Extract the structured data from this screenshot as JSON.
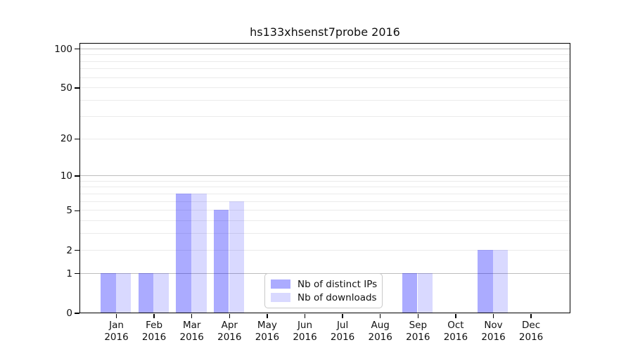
{
  "chart_data": {
    "type": "bar",
    "title": "hs133xhsenst7probe 2016",
    "year": "2016",
    "categories": [
      "Jan",
      "Feb",
      "Mar",
      "Apr",
      "May",
      "Jun",
      "Jul",
      "Aug",
      "Sep",
      "Oct",
      "Nov",
      "Dec"
    ],
    "series": [
      {
        "name": "Nb of distinct IPs",
        "base_color": "#0000ff",
        "alpha": 0.33,
        "values": [
          1,
          1,
          7,
          5,
          0,
          0,
          0,
          0,
          1,
          0,
          2,
          0
        ]
      },
      {
        "name": "Nb of downloads",
        "base_color": "#0000ff",
        "alpha": 0.15,
        "values": [
          1,
          1,
          7,
          6,
          0,
          0,
          0,
          0,
          1,
          0,
          2,
          0
        ]
      }
    ],
    "y_ticks": [
      100,
      50,
      20,
      10,
      5,
      2,
      1,
      0
    ],
    "y_scale": "log1p",
    "ylim": [
      0,
      100
    ],
    "grid": true,
    "grid_major_values": [
      1,
      10,
      100
    ],
    "grid_minor_values": [
      2,
      3,
      4,
      5,
      6,
      7,
      8,
      9,
      20,
      30,
      40,
      50,
      60,
      70,
      80,
      90
    ],
    "legend_position": "lower-center",
    "colors": {
      "major_grid": "#bdbdbd",
      "minor_grid": "#ebebeb",
      "spine": "#000000"
    }
  }
}
